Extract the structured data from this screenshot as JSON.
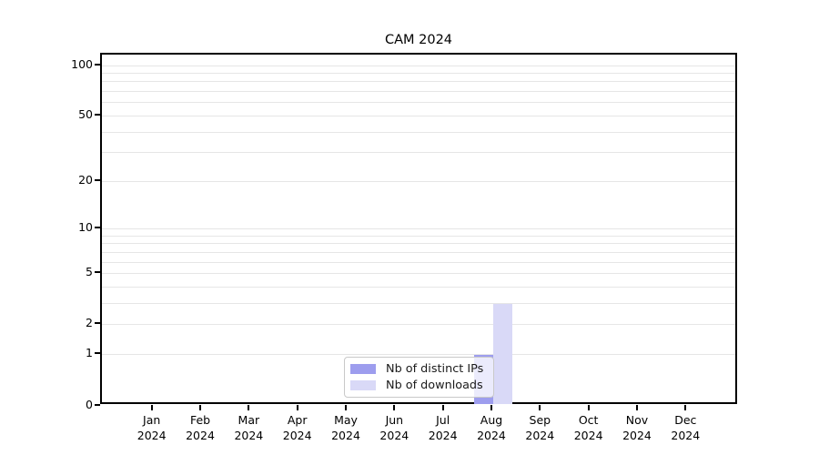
{
  "chart_data": {
    "type": "bar",
    "title": "CAM 2024",
    "categories": [
      "Jan",
      "Feb",
      "Mar",
      "Apr",
      "May",
      "Jun",
      "Jul",
      "Aug",
      "Sep",
      "Oct",
      "Nov",
      "Dec"
    ],
    "year_label": "2024",
    "series": [
      {
        "name": "Nb of distinct IPs",
        "color": "#9d9dee",
        "values": [
          0,
          0,
          0,
          0,
          0,
          0,
          0,
          1,
          0,
          0,
          0,
          0
        ]
      },
      {
        "name": "Nb of downloads",
        "color": "#d9d9f7",
        "values": [
          0,
          0,
          0,
          0,
          0,
          0,
          0,
          3,
          0,
          0,
          0,
          0
        ]
      }
    ],
    "xlabel": "",
    "ylabel": "",
    "y_scale": "log10(value+1)",
    "ylim": [
      0,
      117
    ],
    "y_tick_labels": [
      0,
      1,
      2,
      5,
      10,
      20,
      50,
      100
    ],
    "y_gridline_values": [
      1,
      2,
      3,
      4,
      5,
      6,
      7,
      8,
      9,
      10,
      20,
      30,
      40,
      50,
      60,
      70,
      80,
      90,
      100
    ],
    "grid": true,
    "legend_position": "lower-center",
    "colors": {
      "grid": "#e6e6e6",
      "spine": "#000000",
      "legend_border": "#c9c9c9"
    }
  }
}
